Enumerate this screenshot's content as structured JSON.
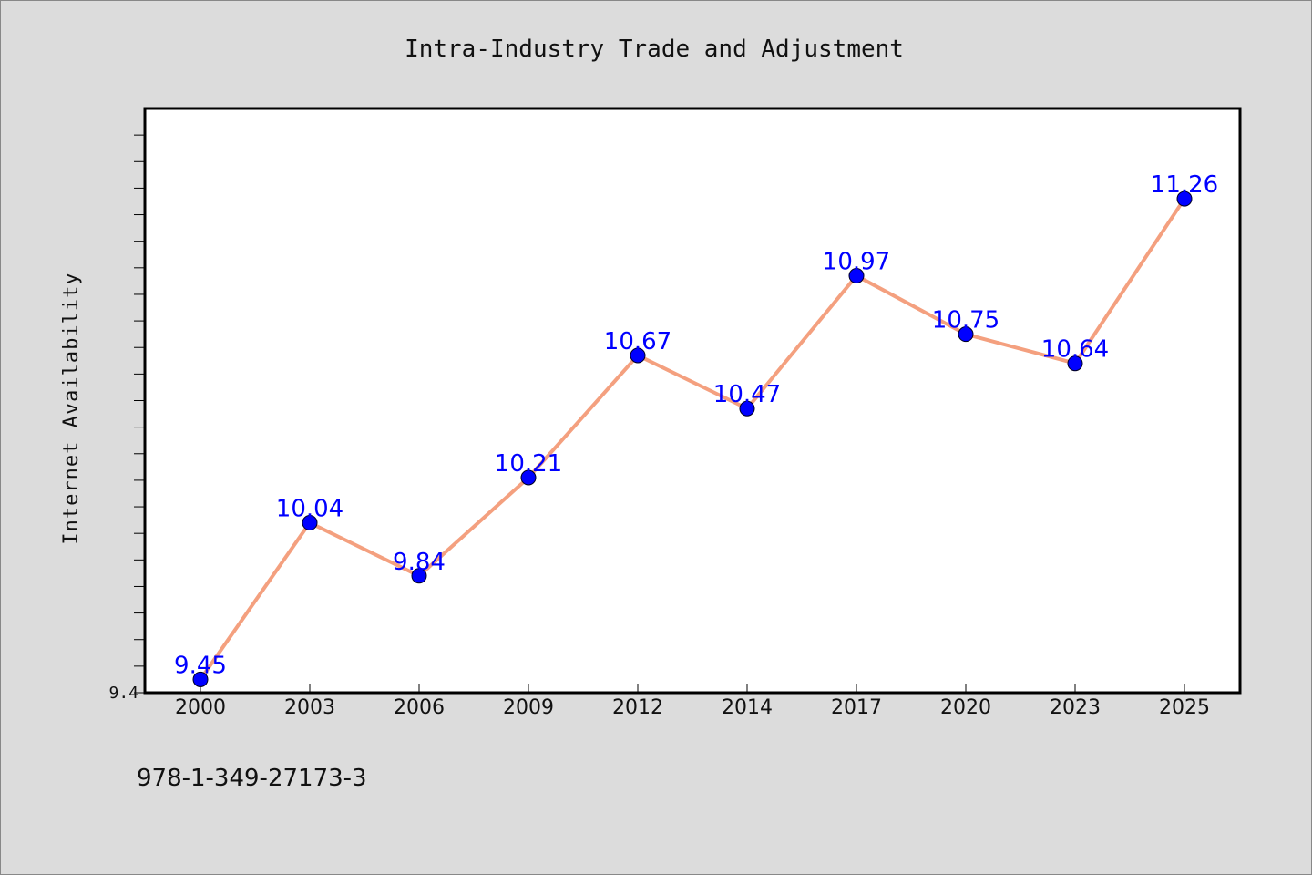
{
  "chart_data": {
    "type": "line",
    "title": "Intra-Industry Trade and Adjustment",
    "xlabel": "",
    "ylabel": "Internet Availability",
    "categories": [
      "2000",
      "2003",
      "2006",
      "2009",
      "2012",
      "2014",
      "2017",
      "2020",
      "2023",
      "2025"
    ],
    "values": [
      9.45,
      10.04,
      9.84,
      10.21,
      10.67,
      10.47,
      10.97,
      10.75,
      10.64,
      11.26
    ],
    "data_labels": [
      "9.45",
      "10.04",
      "9.84",
      "10.21",
      "10.67",
      "10.47",
      "10.97",
      "10.75",
      "10.64",
      "11.26"
    ],
    "ylim": [
      9.4,
      11.6
    ],
    "yticks": [
      "9.4"
    ],
    "grid": false,
    "legend": "none",
    "line_color": "#f4a07f",
    "marker_color": "#0000ff",
    "label_color": "#0000ff"
  },
  "footer": {
    "isbn": "978-1-349-27173-3"
  }
}
